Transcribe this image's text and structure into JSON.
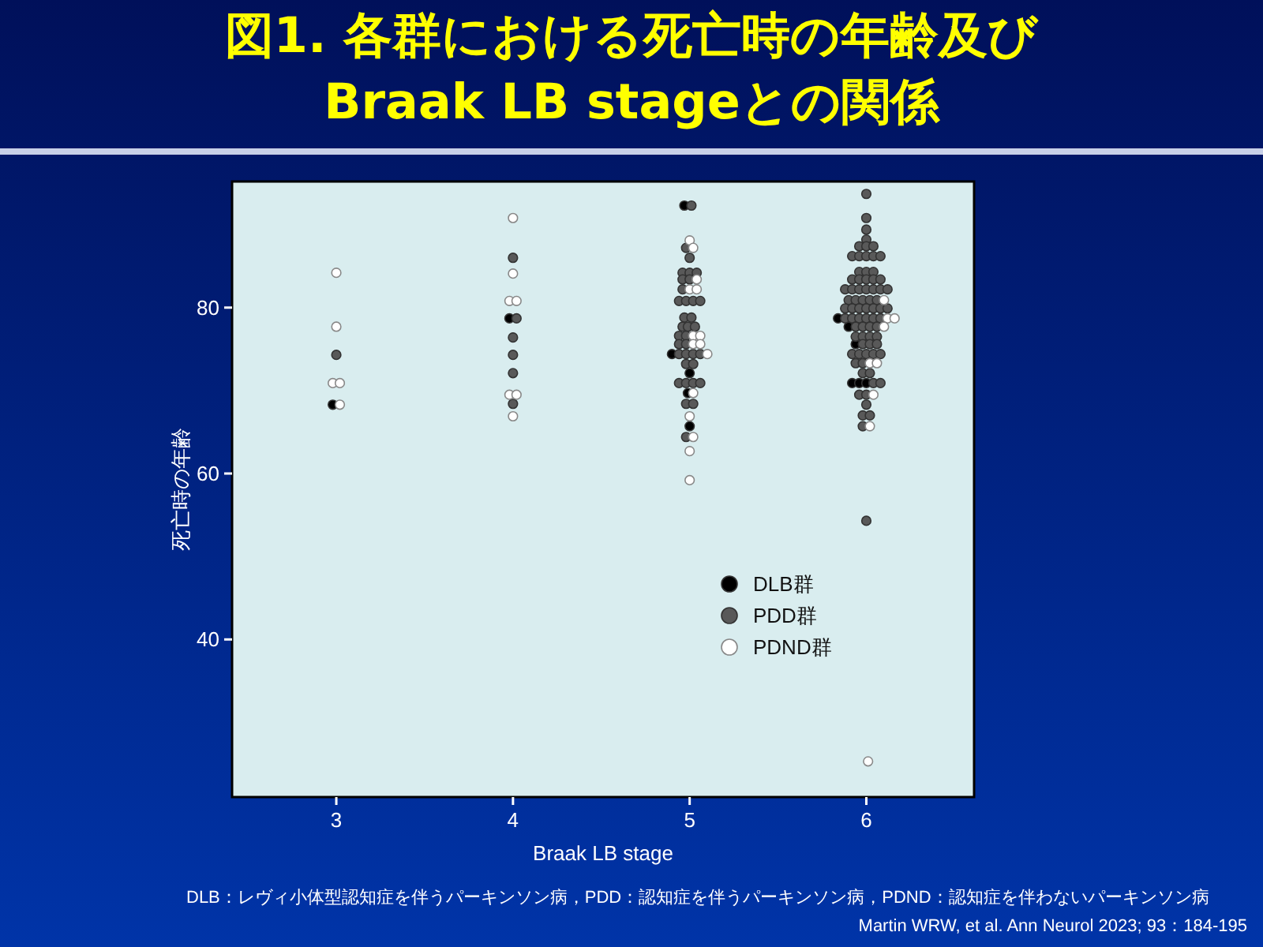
{
  "chart_data": {
    "type": "scatter",
    "title": "図1. 各群における死亡時の年齢及び\nBraak LB stageとの関係",
    "xlabel": "Braak LB stage",
    "ylabel": "死亡時の年齢",
    "xlim": [
      2.41,
      6.61
    ],
    "ylim": [
      21,
      95.2
    ],
    "xticks": [
      3,
      4,
      5,
      6
    ],
    "yticks": [
      40,
      60,
      80
    ],
    "grid": false,
    "legend": "bottom right",
    "marker": "circle",
    "annotations": [
      "DLB：レヴィ小体型認知症を伴うパーキンソン病，PDD：認知症を伴うパーキンソン病，PDND：認知症を伴わないパーキンソン病",
      "Martin WRW, et al. Ann Neurol 2023; 93：184-195"
    ],
    "series": [
      {
        "name": "DLB群",
        "color": "#000000",
        "x": [
          2.98,
          3.98,
          4.97,
          4.9,
          5.0,
          4.99,
          5.0,
          5.84,
          5.9,
          5.94,
          5.92,
          5.96,
          6.0
        ],
        "values": [
          68.3,
          78.7,
          92.3,
          74.4,
          72.1,
          69.7,
          65.7,
          78.7,
          77.7,
          75.6,
          70.9,
          70.9,
          70.9
        ]
      },
      {
        "name": "PDD群",
        "color": "#595959",
        "x": [
          3,
          4,
          4.02,
          4,
          4,
          4,
          4,
          5.01,
          4.98,
          5,
          4.96,
          5.0,
          5.04,
          4.96,
          5.0,
          4.96,
          4.94,
          4.98,
          5.02,
          5.06,
          4.97,
          5.01,
          4.96,
          4.99,
          5.03,
          4.94,
          4.98,
          4.94,
          4.98,
          4.94,
          4.98,
          5.02,
          5.06,
          4.98,
          5.02,
          4.94,
          4.98,
          5.02,
          5.06,
          4.98,
          5.02,
          4.98,
          6.0,
          6.0,
          6.0,
          6.0,
          5.96,
          6.0,
          6.04,
          5.92,
          5.96,
          6.0,
          6.04,
          6.08,
          5.96,
          6.0,
          6.04,
          5.92,
          5.96,
          6.0,
          6.04,
          6.08,
          5.88,
          5.92,
          5.96,
          6.0,
          6.04,
          6.08,
          6.12,
          5.9,
          5.94,
          5.98,
          6.02,
          6.06,
          5.88,
          5.92,
          5.96,
          6.0,
          6.04,
          6.08,
          6.12,
          5.88,
          5.92,
          5.96,
          6.0,
          6.04,
          6.08,
          5.94,
          5.98,
          6.02,
          6.06,
          5.94,
          5.98,
          6.02,
          6.06,
          5.98,
          6.02,
          6.06,
          5.92,
          5.96,
          6.0,
          6.04,
          6.08,
          5.94,
          5.98,
          5.98,
          6.02,
          6.04,
          6.08,
          5.96,
          6.0,
          6.0,
          5.98,
          6.02,
          5.98,
          6.0
        ],
        "values": [
          74.3,
          86.0,
          78.7,
          76.4,
          74.3,
          72.1,
          68.4,
          92.3,
          87.2,
          86.0,
          84.2,
          84.2,
          84.2,
          83.4,
          83.4,
          82.2,
          80.8,
          80.8,
          80.8,
          80.8,
          78.8,
          78.8,
          77.7,
          77.7,
          77.7,
          76.6,
          76.6,
          75.6,
          75.6,
          74.4,
          74.4,
          74.4,
          74.4,
          73.2,
          73.2,
          70.9,
          70.9,
          70.9,
          70.9,
          68.4,
          68.4,
          64.4,
          93.7,
          90.8,
          89.4,
          88.2,
          87.4,
          87.4,
          87.4,
          86.2,
          86.2,
          86.2,
          86.2,
          86.2,
          84.3,
          84.3,
          84.3,
          83.4,
          83.4,
          83.4,
          83.4,
          83.4,
          82.2,
          82.2,
          82.2,
          82.2,
          82.2,
          82.2,
          82.2,
          80.9,
          80.9,
          80.9,
          80.9,
          80.9,
          79.9,
          79.9,
          79.9,
          79.9,
          79.9,
          79.9,
          79.9,
          78.7,
          78.7,
          78.7,
          78.7,
          78.7,
          78.7,
          77.7,
          77.7,
          77.7,
          77.7,
          76.5,
          76.5,
          76.5,
          76.5,
          75.6,
          75.6,
          75.6,
          74.4,
          74.4,
          74.4,
          74.4,
          74.4,
          73.3,
          73.3,
          72.1,
          72.1,
          70.9,
          70.9,
          69.5,
          69.5,
          68.3,
          67.0,
          67.0,
          65.7,
          54.3
        ]
      },
      {
        "name": "PDND群",
        "color": "#ffffff",
        "x": [
          3,
          3,
          2.98,
          3.02,
          3.02,
          4,
          4,
          3.98,
          4.02,
          3.98,
          4.02,
          4,
          5,
          5.02,
          5.04,
          5.0,
          5.04,
          5.02,
          5.06,
          5.02,
          5.06,
          5.1,
          5.02,
          5.02,
          5,
          5,
          5,
          6.1,
          6.12,
          6.16,
          6.1,
          6.02,
          6.06,
          6.04,
          6.02,
          6.01
        ],
        "values": [
          84.2,
          77.7,
          70.9,
          70.9,
          68.3,
          90.8,
          84.1,
          80.8,
          80.8,
          69.5,
          69.5,
          66.9,
          88.1,
          87.2,
          83.4,
          82.2,
          82.2,
          76.6,
          76.6,
          75.6,
          75.6,
          74.4,
          69.7,
          64.4,
          66.9,
          62.7,
          59.2,
          80.9,
          78.7,
          78.7,
          77.7,
          73.3,
          73.3,
          69.5,
          65.7,
          25.3
        ]
      }
    ]
  }
}
